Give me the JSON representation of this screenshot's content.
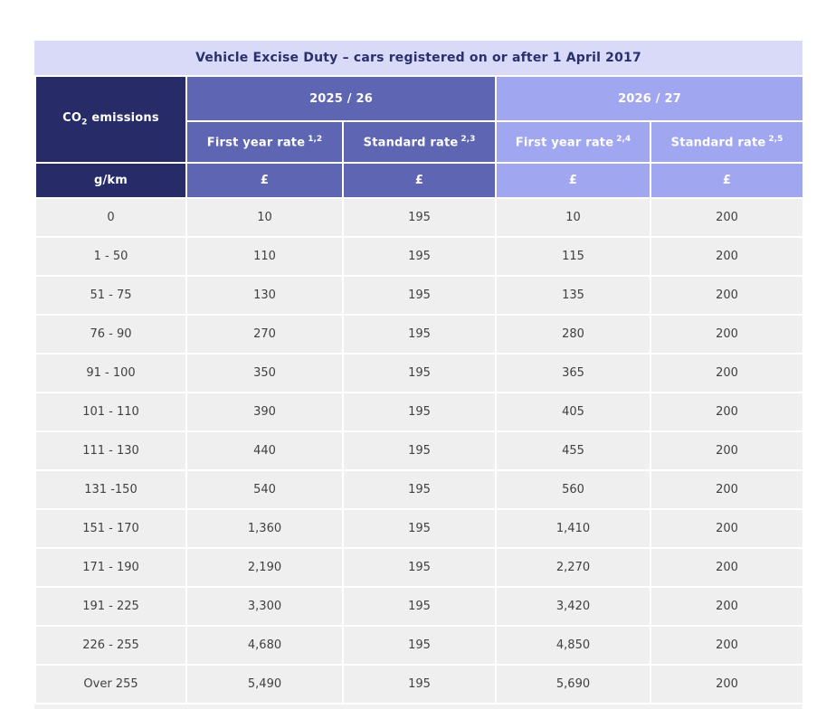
{
  "title": "Vehicle Excise Duty – cars registered on or after 1 April 2017",
  "header": {
    "co2_prefix": "CO",
    "co2_subscript": "2",
    "co2_suffix": " emissions",
    "unit": "g/km",
    "currency": "£",
    "groups": [
      {
        "label": "2025 / 26",
        "sub": [
          {
            "label": "First year rate",
            "sup": "1,2"
          },
          {
            "label": "Standard rate",
            "sup": "2,3"
          }
        ]
      },
      {
        "label": "2026 / 27",
        "sub": [
          {
            "label": "First year rate",
            "sup": "2,4"
          },
          {
            "label": "Standard rate",
            "sup": "2,5"
          }
        ]
      }
    ]
  },
  "chart_data": {
    "type": "table",
    "title": "Vehicle Excise Duty – cars registered on or after 1 April 2017",
    "columns": [
      "CO2 emissions (g/km)",
      "2025/26 First year rate (£)",
      "2025/26 Standard rate (£)",
      "2026/27 First year rate (£)",
      "2026/27 Standard rate (£)"
    ],
    "rows": [
      [
        "0",
        "10",
        "195",
        "10",
        "200"
      ],
      [
        "1 - 50",
        "110",
        "195",
        "115",
        "200"
      ],
      [
        "51 - 75",
        "130",
        "195",
        "135",
        "200"
      ],
      [
        "76 - 90",
        "270",
        "195",
        "280",
        "200"
      ],
      [
        "91 - 100",
        "350",
        "195",
        "365",
        "200"
      ],
      [
        "101 - 110",
        "390",
        "195",
        "405",
        "200"
      ],
      [
        "111 - 130",
        "440",
        "195",
        "455",
        "200"
      ],
      [
        "131 -150",
        "540",
        "195",
        "560",
        "200"
      ],
      [
        "151 - 170",
        "1,360",
        "195",
        "1,410",
        "200"
      ],
      [
        "171 - 190",
        "2,190",
        "195",
        "2,270",
        "200"
      ],
      [
        "191 - 225",
        "3,300",
        "195",
        "3,420",
        "200"
      ],
      [
        "226 - 255",
        "4,680",
        "195",
        "4,850",
        "200"
      ],
      [
        "Over 255",
        "5,490",
        "195",
        "5,690",
        "200"
      ]
    ]
  },
  "colors": {
    "page_bg": "#ffffff",
    "title_bar_bg": "#d8daf8",
    "title_text": "#2b2f6e",
    "navy_bg": "#272c68",
    "group_2025_bg": "#5e65b2",
    "group_2026_bg": "#a1a6f0",
    "header_text": "#ffffff",
    "row_bg": "#efefef",
    "row_text": "#404040",
    "bottom_strip_bg": "#f1f1f1"
  }
}
